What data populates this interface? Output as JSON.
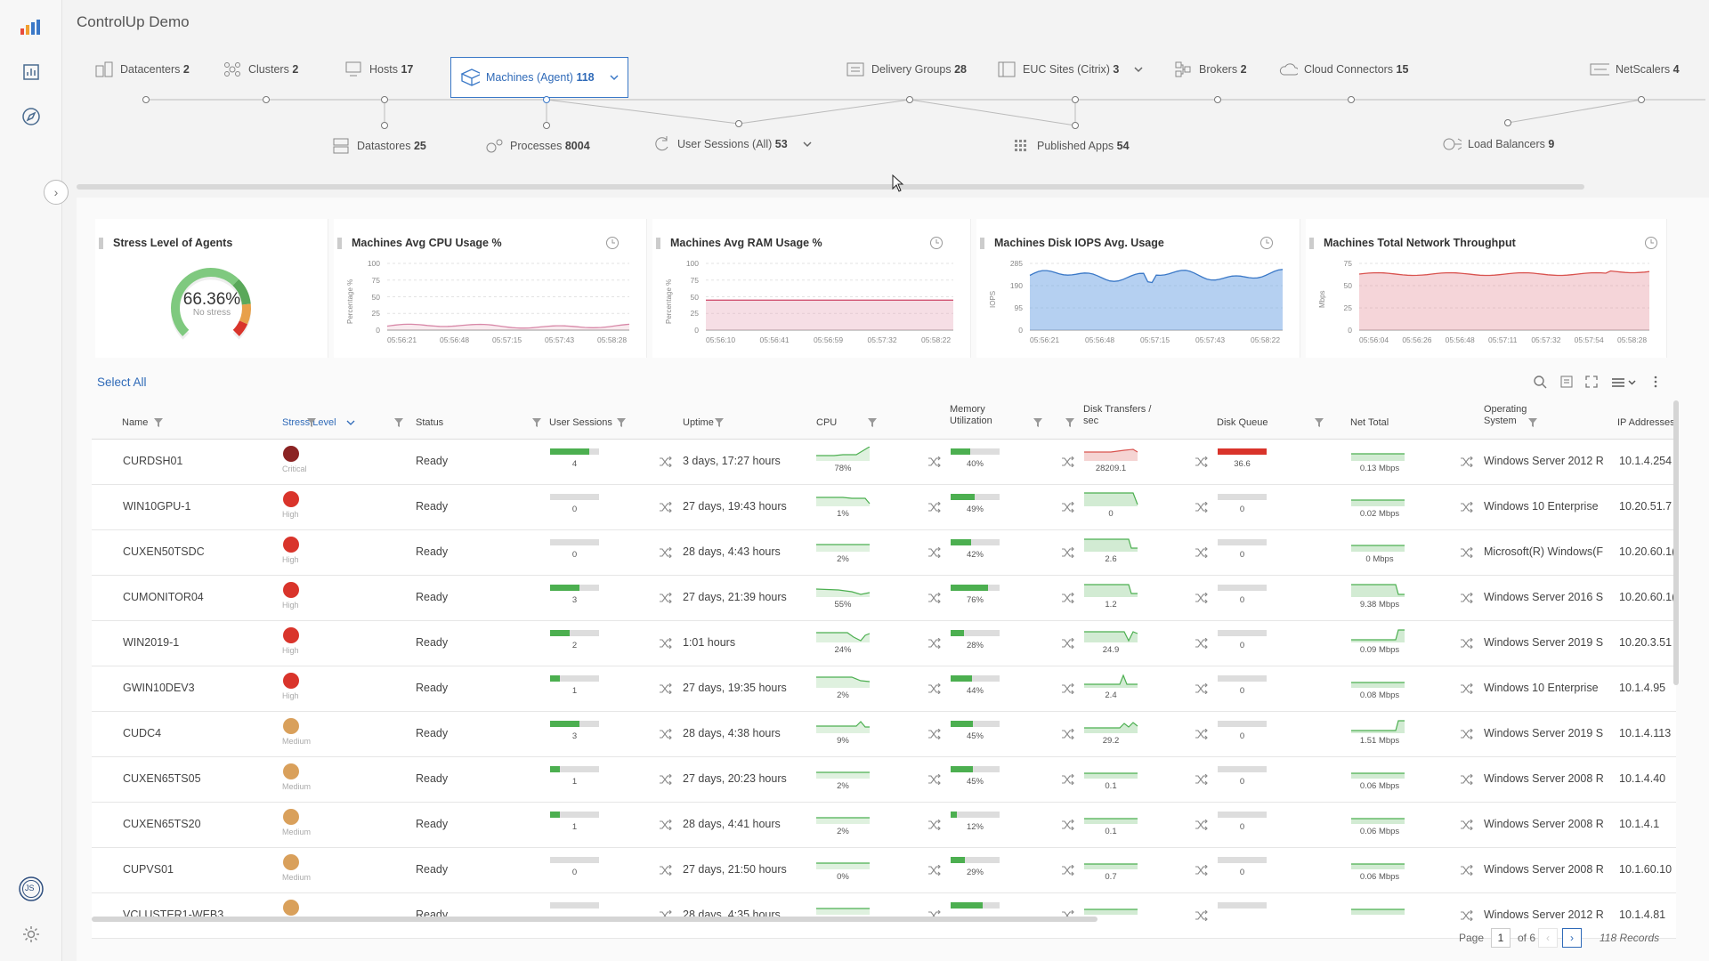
{
  "app": {
    "title": "ControlUp Demo"
  },
  "rail": {
    "user_initials": "JS"
  },
  "colors": {
    "accent": "#2f6ab8",
    "green": "#4caf50",
    "critical": "#8b2323",
    "high": "#d9342b",
    "medium": "#d9a05b",
    "red_bar": "#d9342b"
  },
  "topology": {
    "top": [
      {
        "label": "Datacenters",
        "count": "2",
        "icon": "datacenter-icon"
      },
      {
        "label": "Clusters",
        "count": "2",
        "icon": "cluster-icon"
      },
      {
        "label": "Hosts",
        "count": "17",
        "icon": "host-icon"
      },
      {
        "label": "Machines (Agent)",
        "count": "118",
        "icon": "machine-icon"
      },
      {
        "label": "Delivery Groups",
        "count": "28",
        "icon": "delivery-group-icon"
      },
      {
        "label": "EUC Sites (Citrix)",
        "count": "3",
        "icon": "euc-site-icon"
      },
      {
        "label": "Brokers",
        "count": "2",
        "icon": "broker-icon"
      },
      {
        "label": "Cloud Connectors",
        "count": "15",
        "icon": "cloud-icon"
      },
      {
        "label": "NetScalers",
        "count": "4",
        "icon": "netscaler-icon"
      }
    ],
    "bottom": [
      {
        "label": "Datastores",
        "count": "25",
        "icon": "datastore-icon"
      },
      {
        "label": "Processes",
        "count": "8004",
        "icon": "process-icon"
      },
      {
        "label": "User Sessions (All)",
        "count": "53",
        "icon": "session-icon"
      },
      {
        "label": "Published Apps",
        "count": "54",
        "icon": "apps-icon"
      },
      {
        "label": "Load Balancers",
        "count": "9",
        "icon": "load-balancer-icon"
      }
    ]
  },
  "widgets": {
    "stress": {
      "title": "Stress Level of Agents",
      "value": "66.36%",
      "sub": "No stress",
      "stress_fraction": 0.6636
    },
    "cpu": {
      "title": "Machines Avg CPU Usage %",
      "yaxis": "Percentage %",
      "yticks": [
        "100",
        "75",
        "50",
        "25",
        "0"
      ],
      "xticks": [
        "05:56:21",
        "05:56:48",
        "05:57:15",
        "05:57:43",
        "05:58:28"
      ]
    },
    "ram": {
      "title": "Machines Avg RAM Usage %",
      "yaxis": "Percentage %",
      "yticks": [
        "100",
        "75",
        "50",
        "25",
        "0"
      ],
      "xticks": [
        "05:56:10",
        "05:56:41",
        "05:56:59",
        "05:57:32",
        "05:58:22"
      ]
    },
    "iops": {
      "title": "Machines Disk IOPS Avg. Usage",
      "yaxis": "IOPS",
      "yticks": [
        "285",
        "190",
        "95",
        "0"
      ],
      "xticks": [
        "05:56:21",
        "05:56:48",
        "05:57:15",
        "05:57:43",
        "05:58:22"
      ]
    },
    "net": {
      "title": "Machines Total Network Throughput",
      "yaxis": "Mbps",
      "yticks": [
        "75",
        "50",
        "25",
        "0"
      ],
      "xticks": [
        "05:56:04",
        "05:56:26",
        "05:56:48",
        "05:57:11",
        "05:57:32",
        "05:57:54",
        "05:58:28"
      ]
    }
  },
  "table": {
    "select_all": "Select All",
    "columns": [
      "Name",
      "Stress Level",
      "Status",
      "User Sessions",
      "Uptime",
      "CPU",
      "Memory Utilization",
      "Disk Transfers / sec",
      "Disk Queue",
      "Net Total",
      "Operating System",
      "IP Addresses"
    ],
    "rows": [
      {
        "name": "CURDSH01",
        "stress": "Critical",
        "status": "Ready",
        "sessions": "4",
        "sessions_frac": 0.8,
        "uptime": "3 days, 17:27 hours",
        "cpu": "78%",
        "mem": "40%",
        "mem_frac": 0.4,
        "disk": "28209.1",
        "queue": "36.6",
        "queue_frac": 1.0,
        "net": "0.13 Mbps",
        "os": "Windows Server 2012 R",
        "ip": "10.1.4.254"
      },
      {
        "name": "WIN10GPU-1",
        "stress": "High",
        "status": "Ready",
        "sessions": "0",
        "sessions_frac": 0,
        "uptime": "27 days, 19:43 hours",
        "cpu": "1%",
        "mem": "49%",
        "mem_frac": 0.49,
        "disk": "0",
        "queue": "0",
        "queue_frac": 0,
        "net": "0.02 Mbps",
        "os": "Windows 10 Enterprise",
        "ip": "10.20.51.7"
      },
      {
        "name": "CUXEN50TSDC",
        "stress": "High",
        "status": "Ready",
        "sessions": "0",
        "sessions_frac": 0,
        "uptime": "28 days, 4:43 hours",
        "cpu": "2%",
        "mem": "42%",
        "mem_frac": 0.42,
        "disk": "2.6",
        "queue": "0",
        "queue_frac": 0,
        "net": "0 Mbps",
        "os": "Microsoft(R) Windows(F",
        "ip": "10.20.60.1("
      },
      {
        "name": "CUMONITOR04",
        "stress": "High",
        "status": "Ready",
        "sessions": "3",
        "sessions_frac": 0.6,
        "uptime": "27 days, 21:39 hours",
        "cpu": "55%",
        "mem": "76%",
        "mem_frac": 0.76,
        "disk": "1.2",
        "queue": "0",
        "queue_frac": 0,
        "net": "9.38 Mbps",
        "os": "Windows Server 2016 S",
        "ip": "10.20.60.1("
      },
      {
        "name": "WIN2019-1",
        "stress": "High",
        "status": "Ready",
        "sessions": "2",
        "sessions_frac": 0.4,
        "uptime": "1:01 hours",
        "cpu": "24%",
        "mem": "28%",
        "mem_frac": 0.28,
        "disk": "24.9",
        "queue": "0",
        "queue_frac": 0,
        "net": "0.09 Mbps",
        "os": "Windows Server 2019 S",
        "ip": "10.20.3.51"
      },
      {
        "name": "GWIN10DEV3",
        "stress": "High",
        "status": "Ready",
        "sessions": "1",
        "sessions_frac": 0.2,
        "uptime": "27 days, 19:35 hours",
        "cpu": "2%",
        "mem": "44%",
        "mem_frac": 0.44,
        "disk": "2.4",
        "queue": "0",
        "queue_frac": 0,
        "net": "0.08 Mbps",
        "os": "Windows 10 Enterprise",
        "ip": "10.1.4.95"
      },
      {
        "name": "CUDC4",
        "stress": "Medium",
        "status": "Ready",
        "sessions": "3",
        "sessions_frac": 0.6,
        "uptime": "28 days, 4:38 hours",
        "cpu": "9%",
        "mem": "45%",
        "mem_frac": 0.45,
        "disk": "29.2",
        "queue": "0",
        "queue_frac": 0,
        "net": "1.51 Mbps",
        "os": "Windows Server 2019 S",
        "ip": "10.1.4.113"
      },
      {
        "name": "CUXEN65TS05",
        "stress": "Medium",
        "status": "Ready",
        "sessions": "1",
        "sessions_frac": 0.2,
        "uptime": "27 days, 20:23 hours",
        "cpu": "2%",
        "mem": "45%",
        "mem_frac": 0.45,
        "disk": "0.1",
        "queue": "0",
        "queue_frac": 0,
        "net": "0.06 Mbps",
        "os": "Windows Server 2008 R",
        "ip": "10.1.4.40"
      },
      {
        "name": "CUXEN65TS20",
        "stress": "Medium",
        "status": "Ready",
        "sessions": "1",
        "sessions_frac": 0.2,
        "uptime": "28 days, 4:41 hours",
        "cpu": "2%",
        "mem": "12%",
        "mem_frac": 0.12,
        "disk": "0.1",
        "queue": "0",
        "queue_frac": 0,
        "net": "0.06 Mbps",
        "os": "Windows Server 2008 R",
        "ip": "10.1.4.1"
      },
      {
        "name": "CUPVS01",
        "stress": "Medium",
        "status": "Ready",
        "sessions": "0",
        "sessions_frac": 0,
        "uptime": "27 days, 21:50 hours",
        "cpu": "0%",
        "mem": "29%",
        "mem_frac": 0.29,
        "disk": "0.7",
        "queue": "0",
        "queue_frac": 0,
        "net": "0.06 Mbps",
        "os": "Windows Server 2008 R",
        "ip": "10.1.60.10"
      },
      {
        "name": "VCLUSTER1-WEB3",
        "stress": "",
        "status": "Ready",
        "sessions": "",
        "sessions_frac": 0,
        "uptime": "28 days, 4:35 hours",
        "cpu": "",
        "mem": "",
        "mem_frac": 0.66,
        "disk": "",
        "queue": "",
        "queue_frac": 0,
        "net": "",
        "os": "Windows Server 2012 R",
        "ip": "10.1.4.81"
      }
    ]
  },
  "pager": {
    "page_label": "Page",
    "page": "1",
    "of": "of 6",
    "records": "118 Records"
  }
}
